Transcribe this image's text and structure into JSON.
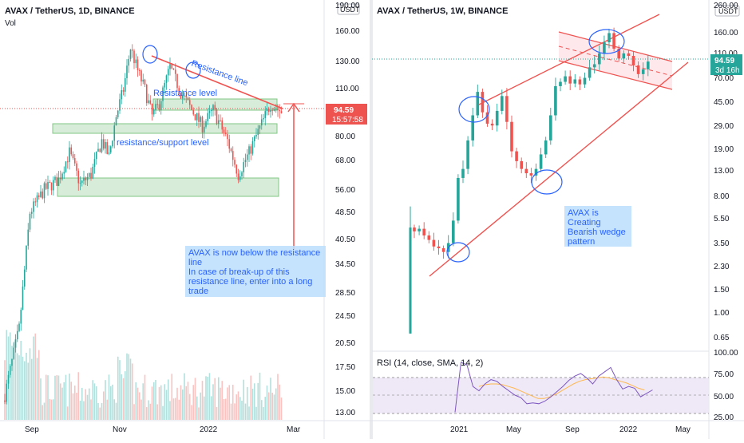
{
  "left": {
    "title": "AVAX / TetherUS, 1D, BINANCE",
    "sub_label": "Vol",
    "currency_badge": "USDT",
    "price_ticks": [
      "190.00",
      "160.00",
      "130.00",
      "110.00",
      "94.59",
      "80.00",
      "68.00",
      "56.00",
      "48.50",
      "40.50",
      "34.50",
      "28.50",
      "24.50",
      "20.50",
      "17.50",
      "15.00",
      "13.00"
    ],
    "price_badge": "94.59",
    "countdown_badge": "15:57:58",
    "time_labels": [
      "Sep",
      "Nov",
      "2022",
      "Mar"
    ],
    "annotations": {
      "resistance_line": "Resistance line",
      "resistance_level": "Resistance level",
      "support_level": "resistance/support level",
      "note": [
        "AVAX is now below the resistance",
        "line",
        "In case of break-up of this",
        "resistance line, enter into a long",
        "trade"
      ]
    }
  },
  "right": {
    "title": "AVAX / TetherUS, 1W, BINANCE",
    "currency_badge": "USDT",
    "price_ticks": [
      "260.00",
      "160.00",
      "110.00",
      "94.59",
      "70.00",
      "45.00",
      "29.00",
      "19.00",
      "13.00",
      "8.00",
      "5.50",
      "3.50",
      "2.30",
      "1.50",
      "1.00",
      "0.65"
    ],
    "price_badge": "94.59",
    "countdown_badge": "3d 16h",
    "time_labels": [
      "2021",
      "May",
      "Sep",
      "2022",
      "May"
    ],
    "annotations": {
      "note": [
        "AVAX is",
        "Creating",
        "Bearish wedge",
        "pattern"
      ]
    },
    "rsi": {
      "label": "RSI (14, close, SMA, 14, 2)",
      "ticks": [
        "100.00",
        "75.00",
        "50.00",
        "25.00"
      ]
    }
  },
  "colors": {
    "bull": "#26a69a",
    "bear": "#ef5350",
    "annotation": "#2962ff",
    "note_box": "#bbdefb",
    "zone": "#c8e6c9"
  },
  "chart_data": [
    {
      "type": "bar",
      "name": "AVAX/USDT daily",
      "title": "AVAX / TetherUS, 1D, BINANCE",
      "scale": "log",
      "ylim": [
        12.5,
        195
      ],
      "x_ticks": [
        "Sep",
        "Nov",
        "2022",
        "Mar"
      ],
      "last_price": 94.59,
      "resistance_zones": [
        [
          93,
          100
        ],
        [
          84,
          89
        ],
        [
          53,
          60
        ]
      ],
      "resistance_line": [
        {
          "date": "2021-11-21",
          "price": 146
        },
        {
          "date": "2022-02-16",
          "price": 95
        }
      ]
    },
    {
      "type": "bar",
      "name": "AVAX/USDT weekly",
      "title": "AVAX / TetherUS, 1W, BINANCE",
      "scale": "log",
      "ylim": [
        0.55,
        270
      ],
      "x_ticks": [
        "2021",
        "May",
        "Sep",
        "2022",
        "May"
      ],
      "last_price": 94.59,
      "weekly_closes": [
        4.1,
        4.3,
        3.8,
        3.5,
        3.1,
        3.0,
        2.8,
        3.3,
        5.0,
        11,
        13,
        22,
        35,
        54,
        37,
        30,
        29,
        38,
        50,
        31,
        18,
        15,
        13,
        12,
        11.5,
        13,
        17,
        22,
        35,
        60,
        65,
        72,
        63,
        68,
        62,
        70,
        85,
        90,
        110,
        135,
        160,
        120,
        100,
        110,
        105,
        88,
        75,
        82,
        94.59
      ]
    },
    {
      "type": "line",
      "name": "RSI",
      "title": "RSI (14, close, SMA, 14, 2)",
      "ylim": [
        25,
        100
      ],
      "levels": [
        70,
        50,
        30
      ],
      "values": [
        30,
        88,
        85,
        60,
        55,
        63,
        68,
        66,
        60,
        55,
        50,
        47,
        40,
        41,
        40,
        43,
        48,
        54,
        60,
        67,
        72,
        75,
        70,
        63,
        72,
        77,
        82,
        68,
        57,
        60,
        58,
        48,
        52,
        56
      ],
      "sma": [
        60,
        62,
        63,
        63,
        62,
        60,
        58,
        55,
        52,
        49,
        46,
        46,
        48,
        51,
        55,
        59,
        63,
        66,
        68,
        69,
        70,
        71,
        70,
        68,
        66,
        64,
        61,
        58,
        56
      ]
    }
  ]
}
